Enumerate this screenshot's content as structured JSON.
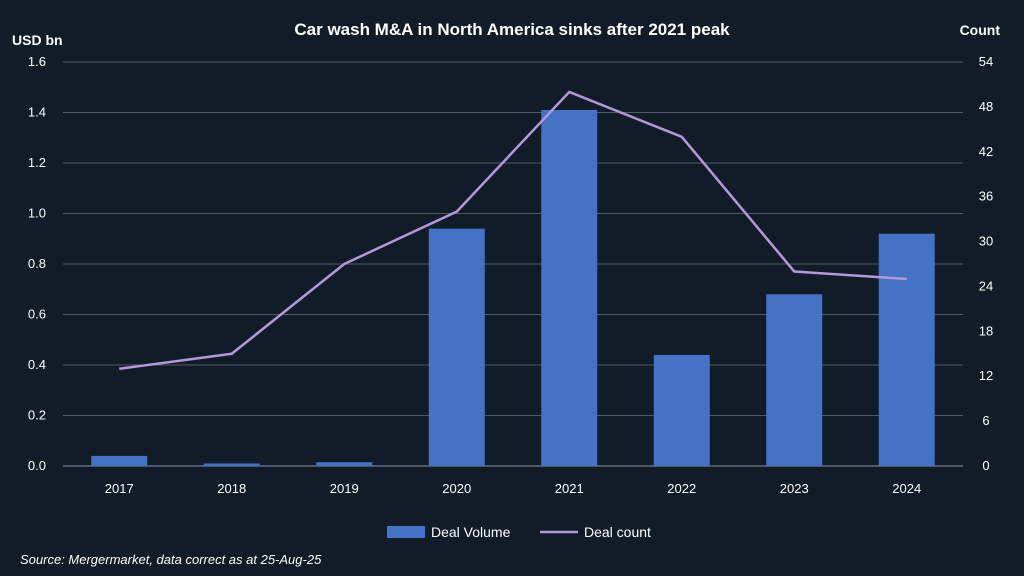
{
  "chart_data": {
    "type": "bar",
    "title": "Car wash M&A in North America sinks after 2021 peak",
    "y_left_label": "USD bn",
    "y_right_label": "Count",
    "categories": [
      "2017",
      "2018",
      "2019",
      "2020",
      "2021",
      "2022",
      "2023",
      "2024"
    ],
    "ylim_left": [
      0,
      1.6
    ],
    "ylim_right": [
      0,
      54
    ],
    "y_left_ticks": [
      "0.0",
      "0.2",
      "0.4",
      "0.6",
      "0.8",
      "1.0",
      "1.2",
      "1.4",
      "1.6"
    ],
    "y_right_ticks": [
      "0",
      "6",
      "12",
      "18",
      "24",
      "30",
      "36",
      "42",
      "48",
      "54"
    ],
    "grid": true,
    "legend_position": "bottom-center",
    "series": [
      {
        "name": "Deal Volume",
        "type": "bar",
        "axis": "left",
        "color": "#4472c4",
        "values": [
          0.04,
          0.01,
          0.015,
          0.94,
          1.41,
          0.44,
          0.68,
          0.92
        ]
      },
      {
        "name": "Deal count",
        "type": "line",
        "axis": "right",
        "color": "#b399dc",
        "values": [
          13,
          15,
          27,
          34,
          50,
          44,
          26,
          25
        ]
      }
    ]
  },
  "source_note": "Source: Mergermarket, data correct as at 25-Aug-25"
}
